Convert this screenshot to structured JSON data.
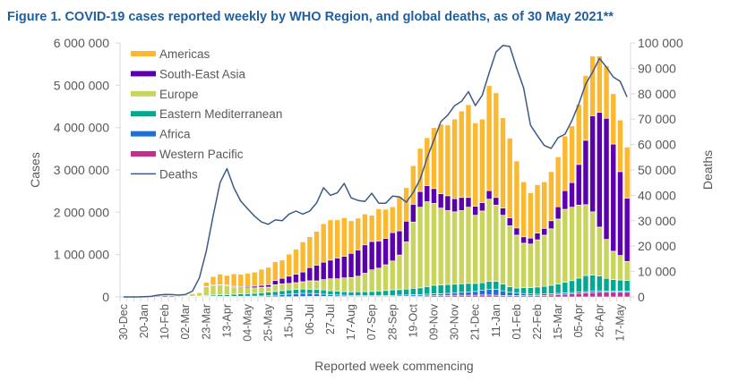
{
  "chart_data": {
    "type": "bar",
    "stacked": true,
    "title": "Figure 1. COVID-19 cases reported weekly by WHO Region, and global deaths, as of 30 May 2021**",
    "xlabel": "Reported week commencing",
    "ylabel": "Cases",
    "y2label": "Deaths",
    "ylim": [
      0,
      6000000
    ],
    "y2lim": [
      0,
      100000
    ],
    "yticks": [
      "0",
      "1 000 000",
      "2 000 000",
      "3 000 000",
      "4 000 000",
      "5 000 000",
      "6 000 000"
    ],
    "y2ticks": [
      "0",
      "10 000",
      "20 000",
      "30 000",
      "40 000",
      "50 000",
      "60 000",
      "70 000",
      "80 000",
      "90 000",
      "100 000"
    ],
    "legend_position": "top-left",
    "grid": false,
    "x": [
      "30-Dec",
      "06-Jan",
      "13-Jan",
      "20-Jan",
      "27-Jan",
      "03-Feb",
      "10-Feb",
      "17-Feb",
      "24-Feb",
      "02-Mar",
      "09-Mar",
      "16-Mar",
      "23-Mar",
      "30-Mar",
      "06-Apr",
      "13-Apr",
      "20-Apr",
      "27-Apr",
      "04-May",
      "11-May",
      "18-May",
      "25-May",
      "01-Jun",
      "08-Jun",
      "15-Jun",
      "22-Jun",
      "29-Jun",
      "06-Jul",
      "13-Jul",
      "20-Jul",
      "27-Jul",
      "03-Aug",
      "10-Aug",
      "17-Aug",
      "24-Aug",
      "31-Aug",
      "07-Sep",
      "14-Sep",
      "21-Sep",
      "28-Sep",
      "05-Oct",
      "12-Oct",
      "19-Oct",
      "26-Oct",
      "02-Nov",
      "09-Nov",
      "16-Nov",
      "23-Nov",
      "30-Nov",
      "07-Dec",
      "14-Dec",
      "21-Dec",
      "28-Dec",
      "04-Jan",
      "11-Jan",
      "18-Jan",
      "25-Jan",
      "01-Feb",
      "08-Feb",
      "15-Feb",
      "22-Feb",
      "01-Mar",
      "08-Mar",
      "15-Mar",
      "22-Mar",
      "29-Mar",
      "05-Apr",
      "12-Apr",
      "19-Apr",
      "26-Apr",
      "03-May",
      "10-May",
      "17-May",
      "24-May"
    ],
    "xtick_labels": [
      "30-Dec",
      "20-Jan",
      "10-Feb",
      "02-Mar",
      "23-Mar",
      "13-Apr",
      "04-May",
      "25-May",
      "15-Jun",
      "06-Jul",
      "27-Jul",
      "17-Aug",
      "07-Sep",
      "28-Sep",
      "19-Oct",
      "09-Nov",
      "30-Nov",
      "21-Dec",
      "11-Jan",
      "01-Feb",
      "22-Feb",
      "15-Mar",
      "05-Apr",
      "26-Apr",
      "17-May"
    ],
    "series": [
      {
        "name": "Western Pacific",
        "color": "#c42e92",
        "values": [
          0,
          0,
          1000,
          3000,
          12000,
          20000,
          30000,
          25000,
          15000,
          10000,
          8000,
          10000,
          10000,
          10000,
          10000,
          8000,
          6000,
          5000,
          5000,
          5000,
          4000,
          4000,
          4000,
          5000,
          6000,
          8000,
          10000,
          12000,
          15000,
          15000,
          12000,
          10000,
          10000,
          10000,
          10000,
          10000,
          10000,
          10000,
          10000,
          10000,
          12000,
          15000,
          20000,
          20000,
          25000,
          30000,
          30000,
          35000,
          40000,
          40000,
          40000,
          40000,
          45000,
          45000,
          40000,
          35000,
          30000,
          30000,
          30000,
          30000,
          30000,
          35000,
          40000,
          50000,
          60000,
          70000,
          80000,
          90000,
          100000,
          110000,
          110000,
          110000,
          110000,
          110000
        ]
      },
      {
        "name": "Africa",
        "color": "#1f6fd6",
        "values": [
          0,
          0,
          0,
          0,
          0,
          0,
          0,
          0,
          0,
          0,
          0,
          1000,
          2000,
          4000,
          5000,
          6000,
          8000,
          10000,
          12000,
          15000,
          20000,
          25000,
          35000,
          45000,
          60000,
          70000,
          75000,
          70000,
          60000,
          50000,
          40000,
          35000,
          30000,
          25000,
          22000,
          20000,
          20000,
          20000,
          22000,
          25000,
          30000,
          30000,
          35000,
          35000,
          40000,
          45000,
          45000,
          50000,
          60000,
          70000,
          80000,
          90000,
          110000,
          130000,
          140000,
          110000,
          80000,
          60000,
          50000,
          40000,
          35000,
          35000,
          35000,
          35000,
          35000,
          35000,
          35000,
          35000,
          35000,
          35000,
          30000,
          30000,
          30000,
          30000
        ]
      },
      {
        "name": "Eastern Mediterranean",
        "color": "#00a98f",
        "values": [
          0,
          0,
          0,
          0,
          0,
          0,
          0,
          0,
          0,
          5000,
          10000,
          10000,
          20000,
          30000,
          35000,
          40000,
          50000,
          55000,
          60000,
          65000,
          75000,
          85000,
          90000,
          100000,
          100000,
          100000,
          100000,
          100000,
          100000,
          100000,
          95000,
          90000,
          85000,
          85000,
          90000,
          95000,
          100000,
          110000,
          120000,
          130000,
          130000,
          140000,
          150000,
          160000,
          180000,
          200000,
          210000,
          210000,
          200000,
          200000,
          200000,
          190000,
          180000,
          190000,
          190000,
          160000,
          130000,
          120000,
          140000,
          150000,
          170000,
          180000,
          200000,
          220000,
          250000,
          280000,
          330000,
          380000,
          380000,
          350000,
          300000,
          270000,
          260000,
          250000
        ]
      },
      {
        "name": "Europe",
        "color": "#c9d45c",
        "values": [
          0,
          0,
          0,
          0,
          0,
          0,
          0,
          0,
          3000,
          20000,
          60000,
          80000,
          210000,
          230000,
          230000,
          210000,
          170000,
          150000,
          140000,
          130000,
          130000,
          120000,
          160000,
          160000,
          154000,
          160000,
          175000,
          200000,
          205000,
          245000,
          283000,
          295000,
          325000,
          340000,
          368000,
          435000,
          510000,
          540000,
          608000,
          685000,
          818000,
          1115000,
          1565000,
          1905000,
          2005000,
          1935000,
          1815000,
          1745000,
          1710000,
          1730000,
          1800000,
          1610000,
          1695000,
          1945000,
          1800000,
          1625000,
          1440000,
          1250000,
          1050000,
          1030000,
          1115000,
          1210000,
          1335000,
          1535000,
          1725000,
          1735000,
          1725000,
          1675000,
          1495000,
          1155000,
          920000,
          670000,
          580000,
          450000
        ]
      },
      {
        "name": "South-East Asia",
        "color": "#5b00ac",
        "values": [
          0,
          0,
          0,
          0,
          0,
          0,
          0,
          0,
          0,
          0,
          0,
          1000,
          3000,
          6000,
          10000,
          15000,
          20000,
          25000,
          30000,
          40000,
          45000,
          55000,
          100000,
          130000,
          170000,
          200000,
          230000,
          310000,
          370000,
          410000,
          440000,
          490000,
          510000,
          570000,
          620000,
          670000,
          670000,
          640000,
          620000,
          670000,
          570000,
          490000,
          420000,
          370000,
          380000,
          350000,
          340000,
          350000,
          310000,
          310000,
          230000,
          210000,
          200000,
          200000,
          180000,
          170000,
          190000,
          170000,
          150000,
          140000,
          160000,
          160000,
          190000,
          290000,
          440000,
          580000,
          960000,
          1520000,
          2270000,
          2710000,
          2860000,
          2530000,
          1980000,
          1490000
        ]
      },
      {
        "name": "Americas",
        "color": "#fbb931",
        "values": [
          0,
          0,
          0,
          0,
          0,
          0,
          0,
          0,
          0,
          0,
          5000,
          10000,
          100000,
          200000,
          250000,
          230000,
          290000,
          290000,
          310000,
          330000,
          380000,
          410000,
          440000,
          430000,
          520000,
          590000,
          710000,
          730000,
          800000,
          910000,
          950000,
          900000,
          910000,
          770000,
          750000,
          730000,
          620000,
          760000,
          690000,
          610000,
          810000,
          790000,
          910000,
          1020000,
          1130000,
          1440000,
          1640000,
          1670000,
          1880000,
          2040000,
          2190000,
          1970000,
          1970000,
          2480000,
          2470000,
          2130000,
          1880000,
          1580000,
          1300000,
          1070000,
          1140000,
          1100000,
          1160000,
          1180000,
          1290000,
          1340000,
          1420000,
          1530000,
          1410000,
          1330000,
          1240000,
          1190000,
          1220000,
          1210000
        ]
      }
    ],
    "line": {
      "name": "Deaths",
      "color": "#3c5a85",
      "axis": "right",
      "values": [
        0,
        0,
        0,
        100,
        200,
        700,
        1000,
        900,
        700,
        1000,
        2300,
        7500,
        18000,
        32000,
        45000,
        50500,
        43000,
        37700,
        34700,
        31800,
        29500,
        28600,
        30300,
        30000,
        32600,
        33800,
        32600,
        33800,
        37000,
        43000,
        40000,
        41000,
        44700,
        39000,
        38000,
        37600,
        40800,
        36900,
        36900,
        39700,
        39400,
        37300,
        41200,
        46300,
        54700,
        61800,
        69000,
        71600,
        75300,
        77000,
        80800,
        75300,
        79400,
        88200,
        96400,
        99000,
        98600,
        90000,
        82300,
        67600,
        63500,
        59600,
        58500,
        62700,
        64100,
        69400,
        76000,
        83800,
        88500,
        93900,
        90500,
        86600,
        84900,
        78700
      ]
    },
    "legend_order": [
      "Americas",
      "South-East Asia",
      "Europe",
      "Eastern Mediterranean",
      "Africa",
      "Western Pacific",
      "Deaths"
    ]
  }
}
